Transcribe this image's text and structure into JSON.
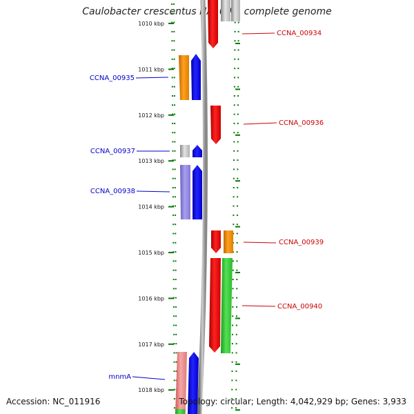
{
  "title": "Caulobacter crescentus NA1000, complete genome",
  "footer": {
    "accession": "Accession: NC_011916",
    "topology": "Topology: circular; Length: 4,042,929 bp; Genes: 3,933"
  },
  "colors": {
    "minus_label": "#0000cc",
    "plus_label": "#cc0000",
    "tick": "#007700",
    "backbone": "#999999"
  },
  "scale": {
    "ticks": [
      "1010 kbp",
      "1011 kbp",
      "1012 kbp",
      "1013 kbp",
      "1014 kbp",
      "1015 kbp",
      "1016 kbp",
      "1017 kbp",
      "1018 kbp"
    ]
  },
  "gene_labels": {
    "ccna_00934": "CCNA_00934",
    "ccna_00935": "CCNA_00935",
    "ccna_00936": "CCNA_00936",
    "ccna_00937": "CCNA_00937",
    "ccna_00938": "CCNA_00938",
    "ccna_00939": "CCNA_00939",
    "ccna_00940": "CCNA_00940",
    "mnma": "mnmA"
  }
}
